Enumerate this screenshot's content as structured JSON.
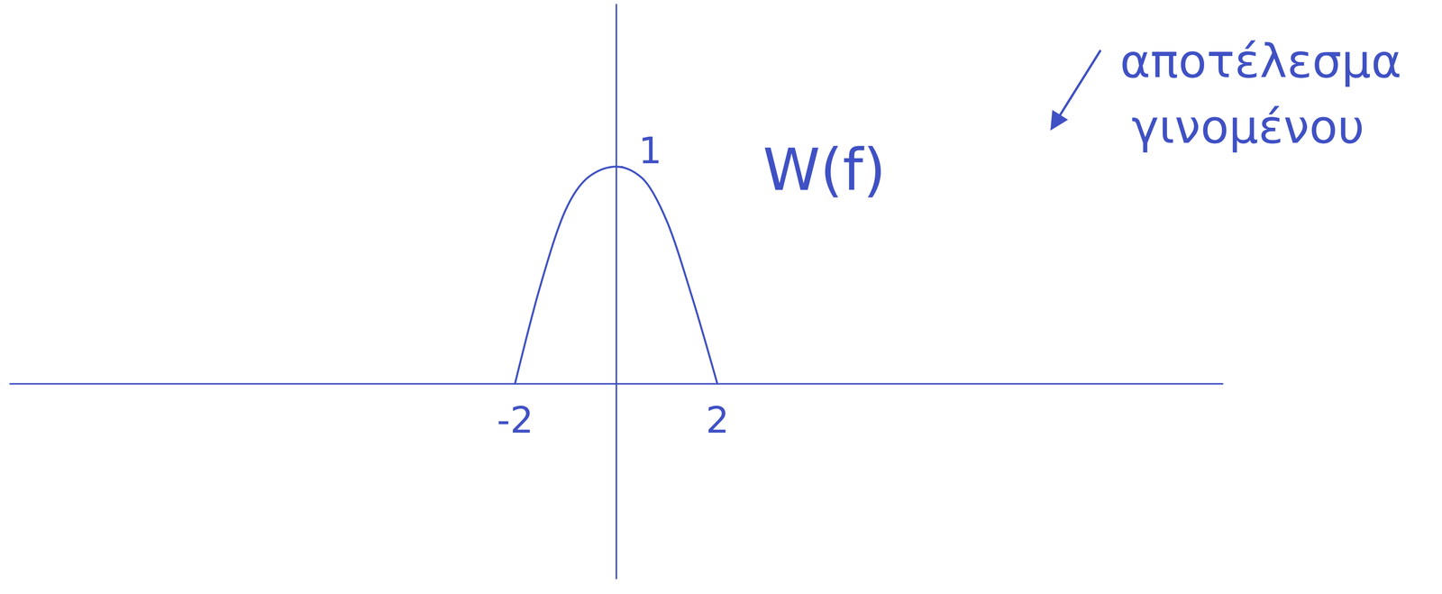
{
  "chart_data": {
    "type": "line",
    "x": [
      -2,
      -1.5,
      -1,
      -0.5,
      0,
      0.5,
      1,
      1.5,
      2
    ],
    "series": [
      {
        "name": "W(f)",
        "color": "#3f51c4",
        "values": [
          0,
          0.45,
          0.8,
          0.96,
          1,
          0.95,
          0.75,
          0.4,
          0
        ]
      }
    ],
    "xlim": [
      -12,
      12
    ],
    "xticks": [
      -2,
      2
    ],
    "ylim": [
      -0.9,
      1.75
    ],
    "yticks": [
      1
    ],
    "annotation": "αποτέλεσμα γινομένου",
    "grid": false
  }
}
